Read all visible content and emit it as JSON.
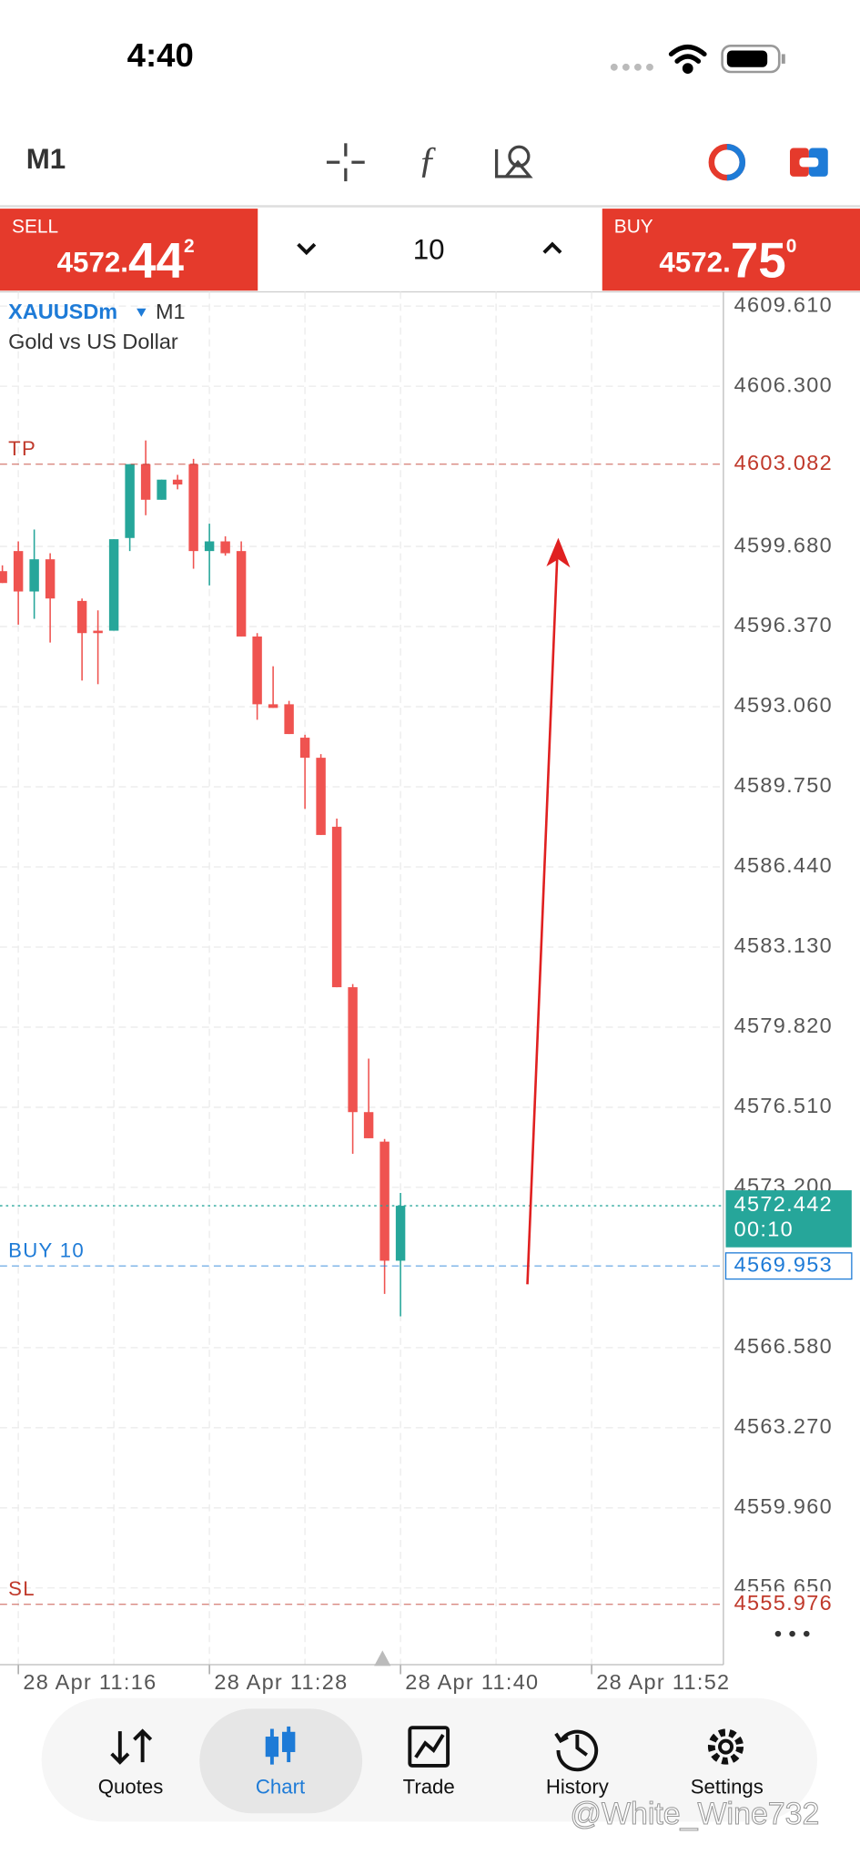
{
  "status_bar": {
    "time": "4:40"
  },
  "toolbar": {
    "timeframe": "M1"
  },
  "trade_panel": {
    "sell": {
      "label": "SELL",
      "price_main": "4572.",
      "price_big": "44",
      "price_small": "2"
    },
    "volume": "10",
    "buy": {
      "label": "BUY",
      "price_main": "4572.",
      "price_big": "75",
      "price_small": "0"
    }
  },
  "chart_data": {
    "type": "candlestick",
    "symbol": "XAUUSDm",
    "timeframe": "M1",
    "description": "Gold vs US Dollar",
    "categories": [
      null,
      null,
      null,
      null,
      null,
      null,
      null,
      null,
      null,
      null,
      null,
      null,
      null,
      null,
      null,
      null,
      null,
      null,
      null,
      null,
      null,
      null,
      null,
      null,
      null,
      null
    ],
    "open": [
      4598.66,
      4599.49,
      4597.82,
      4599.15,
      null,
      4597.43,
      4596.2,
      4596.2,
      4600.03,
      4603.08,
      4601.61,
      4602.44,
      4603.08,
      4599.49,
      4599.89,
      4599.49,
      4595.96,
      4593.16,
      4593.16,
      4591.78,
      4590.95,
      4588.1,
      4581.47,
      4576.31,
      4575.09,
      4570.17
    ],
    "high": [
      4598.9,
      4599.89,
      4600.38,
      4599.4,
      null,
      4597.53,
      4597.04,
      4599.98,
      4603.08,
      4604.06,
      4602.44,
      4602.64,
      4603.3,
      4600.62,
      4600.1,
      4599.89,
      4596.1,
      4594.73,
      4593.3,
      4591.9,
      4591.1,
      4588.44,
      4581.6,
      4578.52,
      4575.2,
      4572.97
    ],
    "low": [
      4598.17,
      4596.45,
      4596.69,
      4595.71,
      null,
      4594.14,
      4593.99,
      4596.2,
      4599.49,
      4600.97,
      4601.61,
      4602.04,
      4598.76,
      4598.07,
      4599.3,
      4595.96,
      4592.52,
      4593.01,
      4591.93,
      4588.84,
      4587.76,
      4581.47,
      4574.59,
      4575.23,
      4568.8,
      4567.87
    ],
    "close": [
      4598.17,
      4597.82,
      4599.15,
      4597.53,
      null,
      4596.1,
      4596.1,
      4599.98,
      4603.08,
      4601.61,
      4602.44,
      4602.24,
      4599.49,
      4599.89,
      4599.4,
      4595.96,
      4593.16,
      4593.01,
      4591.93,
      4590.95,
      4587.76,
      4581.47,
      4576.31,
      4575.23,
      4570.17,
      4572.44
    ],
    "up_color": "#26a69a",
    "down_color": "#ef5350",
    "xlim": [
      -0.15,
      45.2
    ],
    "xticks": [
      {
        "value": 1,
        "label": "28 Apr 11:16"
      },
      {
        "value": 13,
        "label": "28 Apr 11:28"
      },
      {
        "value": 25,
        "label": "28 Apr 11:40"
      },
      {
        "value": 37,
        "label": "28 Apr 11:52"
      }
    ],
    "ylim": [
      4553.48,
      4610.2
    ],
    "yticks": [
      {
        "value": 4609.61,
        "label": "4609.610"
      },
      {
        "value": 4606.3,
        "label": "4606.300"
      },
      {
        "value": 4599.68,
        "label": "4599.680"
      },
      {
        "value": 4596.37,
        "label": "4596.370"
      },
      {
        "value": 4593.06,
        "label": "4593.060"
      },
      {
        "value": 4589.75,
        "label": "4589.750"
      },
      {
        "value": 4586.44,
        "label": "4586.440"
      },
      {
        "value": 4583.13,
        "label": "4583.130"
      },
      {
        "value": 4579.82,
        "label": "4579.820"
      },
      {
        "value": 4576.51,
        "label": "4576.510"
      },
      {
        "value": 4573.2,
        "label": "4573.200"
      },
      {
        "value": 4566.58,
        "label": "4566.580"
      },
      {
        "value": 4563.27,
        "label": "4563.270"
      },
      {
        "value": 4559.96,
        "label": "4559.960"
      },
      {
        "value": 4556.65,
        "label": "4556.650"
      }
    ],
    "grid": true,
    "levels": [
      {
        "label": "TP",
        "value": 4603.082,
        "color": "#c0392b"
      },
      {
        "label": "BUY 10",
        "value": 4569.953,
        "color": "#1e7bd7"
      },
      {
        "label": "SL",
        "value": 4555.976,
        "color": "#c0392b"
      }
    ],
    "bid": {
      "value": 4572.442,
      "countdown": "00:10",
      "color": "#26a69a"
    }
  },
  "nav": {
    "items": [
      "Quotes",
      "Chart",
      "Trade",
      "History",
      "Settings"
    ],
    "active": 1
  },
  "watermark": "@White_Wine732"
}
